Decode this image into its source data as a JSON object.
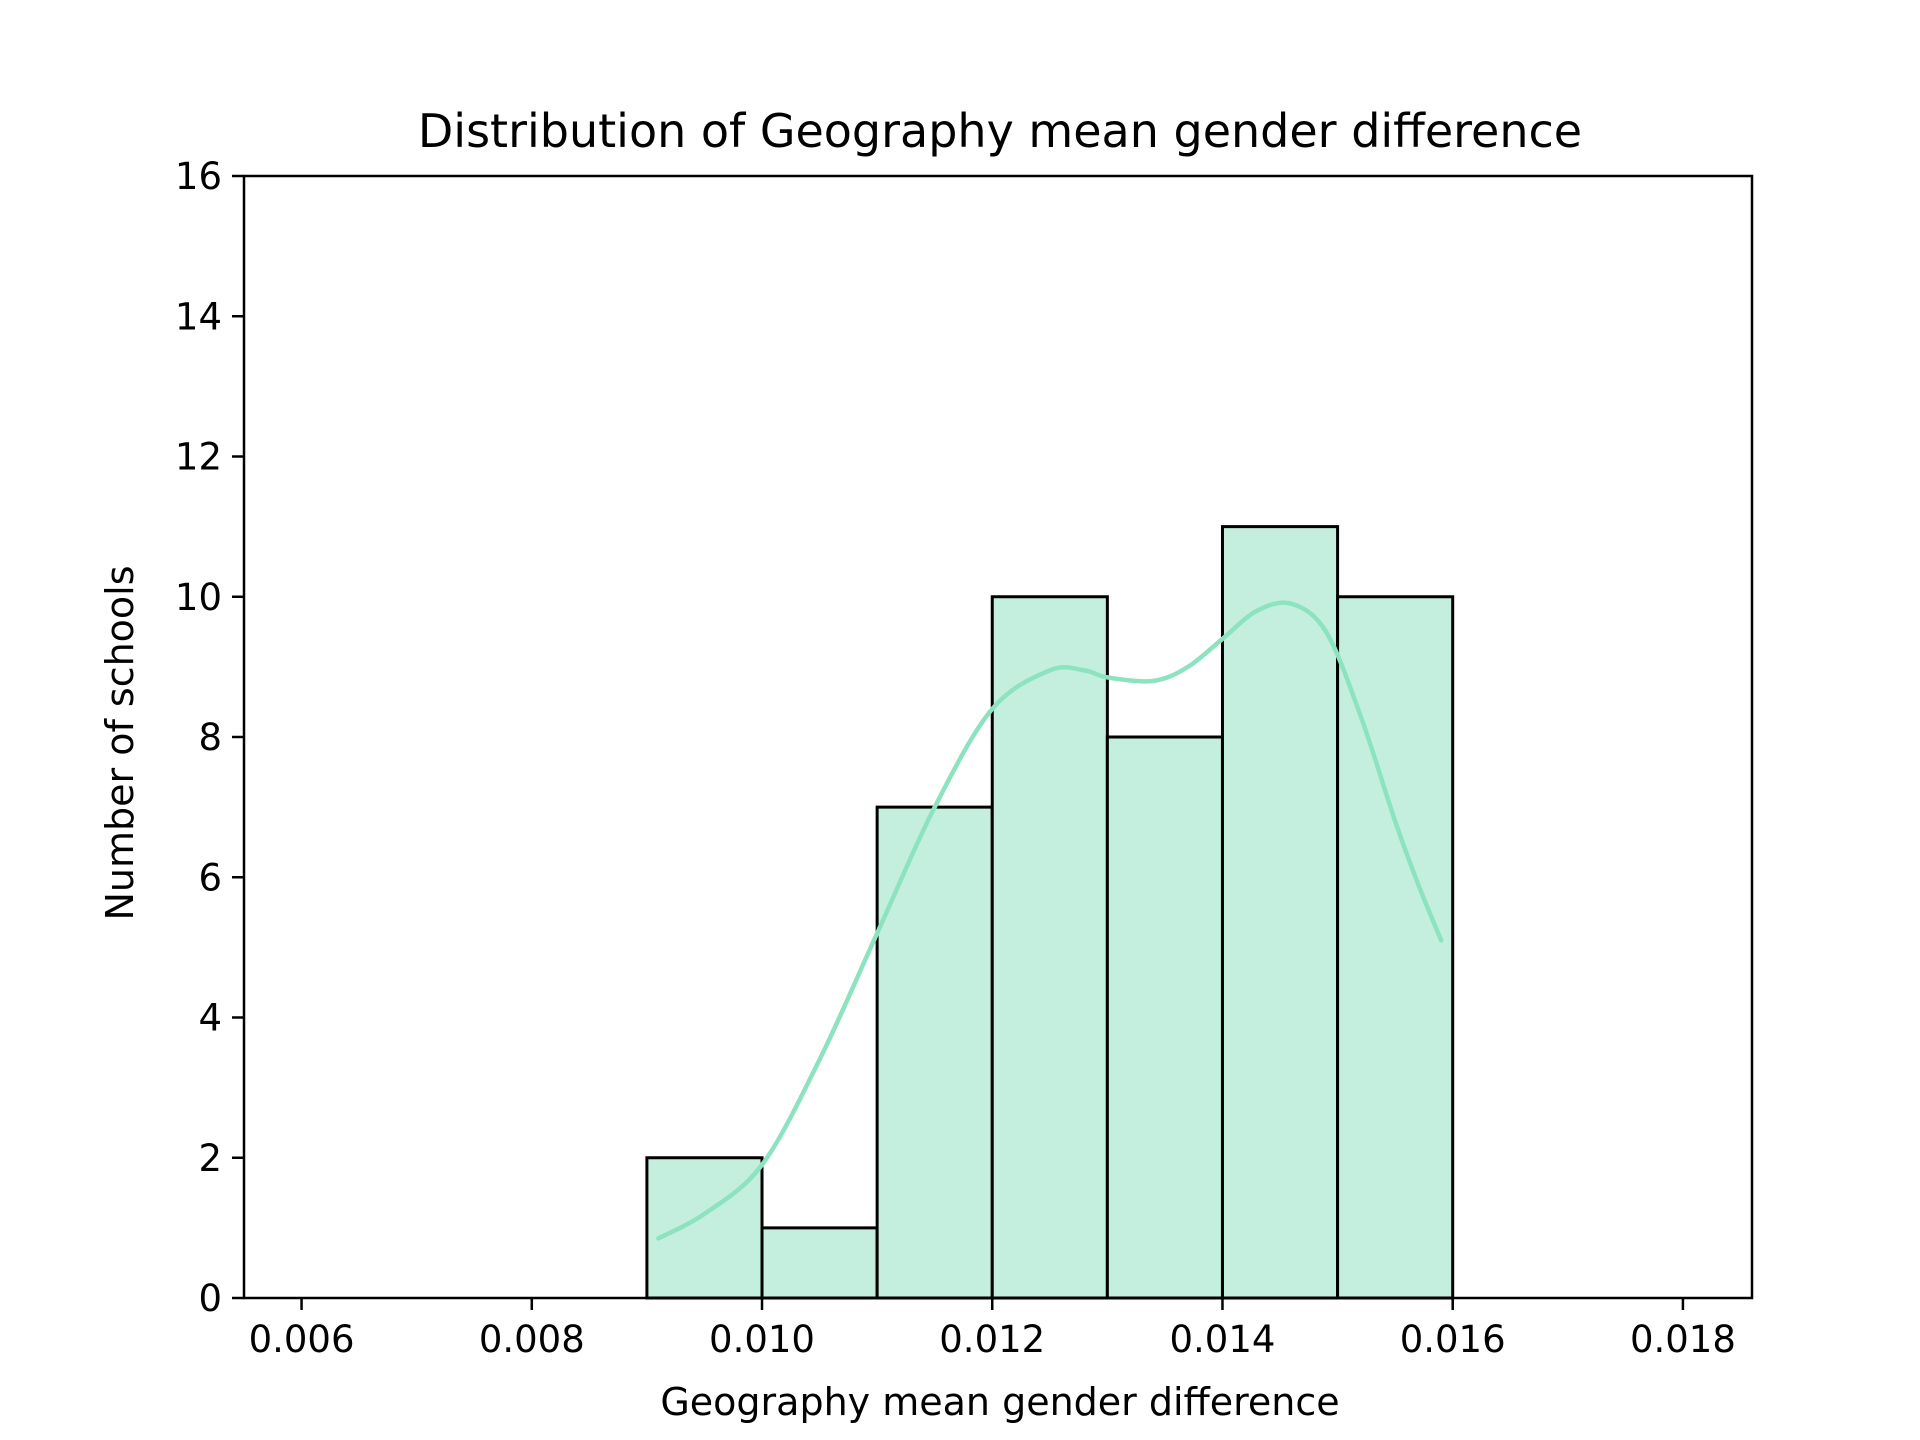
{
  "chart_data": {
    "type": "bar",
    "title": "Distribution of Geography mean gender difference",
    "xlabel": "Geography mean gender difference",
    "ylabel": "Number of schools",
    "xlim": [
      0.0055,
      0.0186
    ],
    "ylim": [
      0,
      16
    ],
    "x_ticks": [
      "0.006",
      "0.008",
      "0.010",
      "0.012",
      "0.014",
      "0.016",
      "0.018"
    ],
    "x_tick_values": [
      0.006,
      0.008,
      0.01,
      0.012,
      0.014,
      0.016,
      0.018
    ],
    "y_ticks": [
      "0",
      "2",
      "4",
      "6",
      "8",
      "10",
      "12",
      "14",
      "16"
    ],
    "y_tick_values": [
      0,
      2,
      4,
      6,
      8,
      10,
      12,
      14,
      16
    ],
    "bins": [
      {
        "start": 0.006,
        "end": 0.007,
        "count": 0
      },
      {
        "start": 0.007,
        "end": 0.008,
        "count": 0
      },
      {
        "start": 0.008,
        "end": 0.009,
        "count": 0
      },
      {
        "start": 0.009,
        "end": 0.01,
        "count": 2
      },
      {
        "start": 0.01,
        "end": 0.011,
        "count": 1
      },
      {
        "start": 0.011,
        "end": 0.012,
        "count": 7
      },
      {
        "start": 0.012,
        "end": 0.013,
        "count": 10
      },
      {
        "start": 0.013,
        "end": 0.014,
        "count": 8
      },
      {
        "start": 0.014,
        "end": 0.015,
        "count": 11
      },
      {
        "start": 0.015,
        "end": 0.016,
        "count": 10
      },
      {
        "start": 0.016,
        "end": 0.017,
        "count": 0
      },
      {
        "start": 0.017,
        "end": 0.018,
        "count": 0
      }
    ],
    "kde": {
      "x": [
        0.0091,
        0.0095,
        0.01,
        0.0105,
        0.011,
        0.0115,
        0.012,
        0.0125,
        0.0128,
        0.013,
        0.0134,
        0.0137,
        0.014,
        0.0143,
        0.0146,
        0.0149,
        0.0152,
        0.0155,
        0.0157,
        0.0159
      ],
      "y": [
        0.85,
        1.2,
        1.9,
        3.4,
        5.2,
        7.0,
        8.4,
        8.95,
        8.95,
        8.85,
        8.8,
        9.0,
        9.4,
        9.8,
        9.9,
        9.5,
        8.3,
        6.8,
        5.9,
        5.1
      ]
    },
    "bar_color": "#c4efde",
    "edge_color": "#000000",
    "kde_color": "#8de3c0",
    "grid": false,
    "legend": "none"
  }
}
